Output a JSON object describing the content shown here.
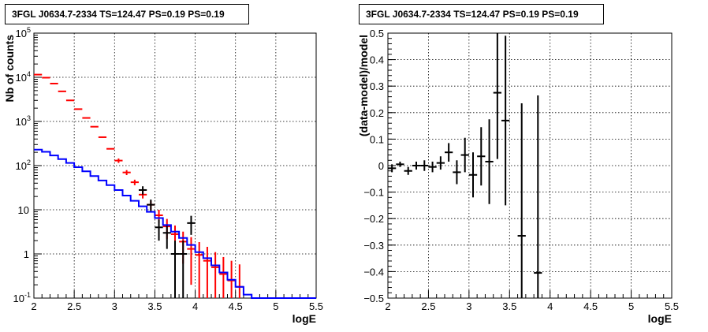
{
  "chart_data": [
    {
      "type": "step+errorbar",
      "title": "3FGL J0634.7-2334 TS=124.47 PS=0.19 PS=0.19",
      "xlabel": "logE",
      "ylabel": "Nb of counts",
      "xlim": [
        2,
        5.5
      ],
      "ylim": [
        0.1,
        100000
      ],
      "yscale": "log",
      "grid": true,
      "x_ticks": [
        "2",
        "2.5",
        "3",
        "3.5",
        "4",
        "4.5",
        "5",
        "5.5"
      ],
      "y_ticks": [
        "10^-1",
        "1",
        "10",
        "10^2",
        "10^3",
        "10^4",
        "10^5"
      ],
      "series": [
        {
          "color": "#ff0000",
          "style": "errorbar",
          "x": [
            2.05,
            2.15,
            2.25,
            2.35,
            2.45,
            2.55,
            2.65,
            2.75,
            2.85,
            2.95,
            3.05,
            3.15,
            3.25,
            3.35,
            3.45,
            3.55,
            3.65,
            3.75,
            3.85,
            3.95,
            4.05,
            4.15,
            4.25,
            4.35,
            4.45,
            4.55
          ],
          "y": [
            11500,
            9800,
            7200,
            4800,
            3000,
            1900,
            1200,
            760,
            440,
            240,
            130,
            70,
            42,
            22,
            13,
            7.5,
            4.2,
            2.8,
            1.9,
            1.3,
            0.95,
            0.7,
            0.5,
            0.35,
            0.25,
            0.18
          ],
          "err": [
            0,
            0,
            0,
            0,
            0,
            0,
            0,
            0,
            0,
            0,
            15,
            9,
            6,
            4,
            3,
            2.5,
            2,
            1.6,
            1.3,
            1.1,
            0.9,
            0.75,
            0.6,
            0.5,
            0.45,
            0.4
          ]
        },
        {
          "color": "#000000",
          "style": "errorbar",
          "x": [
            3.35,
            3.45,
            3.55,
            3.65,
            3.75,
            3.85,
            3.95
          ],
          "y": [
            28,
            13,
            4,
            3,
            1,
            1,
            5
          ],
          "err": [
            6,
            4,
            2,
            1.7,
            1,
            1,
            2.3
          ]
        },
        {
          "color": "#0000ff",
          "style": "step",
          "x": [
            2.05,
            2.15,
            2.25,
            2.35,
            2.45,
            2.55,
            2.65,
            2.75,
            2.85,
            2.95,
            3.05,
            3.15,
            3.25,
            3.35,
            3.45,
            3.55,
            3.65,
            3.75,
            3.85,
            3.95,
            4.05,
            4.15,
            4.25,
            4.35,
            4.45,
            4.55,
            4.65,
            4.75,
            4.85,
            4.95,
            5.05,
            5.15,
            5.25,
            5.35,
            5.45
          ],
          "y": [
            230,
            205,
            170,
            140,
            115,
            92,
            74,
            58,
            46,
            36,
            28,
            21,
            16,
            12,
            9,
            6.5,
            4.5,
            3.2,
            2.3,
            1.6,
            1.1,
            0.8,
            0.55,
            0.38,
            0.26,
            0.18,
            0.12,
            0.1,
            0.1,
            0.1,
            0.1,
            0.1,
            0.1,
            0.1,
            0.1
          ]
        }
      ]
    },
    {
      "type": "errorbar",
      "title": "3FGL J0634.7-2334 TS=124.47 PS=0.19 PS=0.19",
      "xlabel": "logE",
      "ylabel": "(data-model)/model",
      "xlim": [
        2,
        5.5
      ],
      "ylim": [
        -0.5,
        0.5
      ],
      "grid": true,
      "x_ticks": [
        "2",
        "2.5",
        "3",
        "3.5",
        "4",
        "4.5",
        "5",
        "5.5"
      ],
      "y_ticks": [
        "−0.5",
        "−0.4",
        "−0.3",
        "−0.2",
        "−0.1",
        "0",
        "0.1",
        "0.2",
        "0.3",
        "0.4",
        "0.5"
      ],
      "series": [
        {
          "color": "#000000",
          "x": [
            2.05,
            2.15,
            2.25,
            2.35,
            2.45,
            2.55,
            2.65,
            2.75,
            2.85,
            2.95,
            3.05,
            3.15,
            3.25,
            3.35,
            3.45,
            3.65,
            3.85
          ],
          "y": [
            -0.01,
            0.005,
            -0.02,
            0.0,
            0.0,
            -0.005,
            0.01,
            0.05,
            -0.025,
            0.04,
            -0.035,
            0.035,
            0.015,
            0.275,
            0.17,
            -0.265,
            -0.405
          ],
          "err": [
            0.015,
            0.01,
            0.015,
            0.015,
            0.02,
            0.02,
            0.025,
            0.035,
            0.045,
            0.065,
            0.085,
            0.11,
            0.16,
            0.25,
            0.32,
            0.5,
            0.67
          ]
        }
      ]
    }
  ]
}
